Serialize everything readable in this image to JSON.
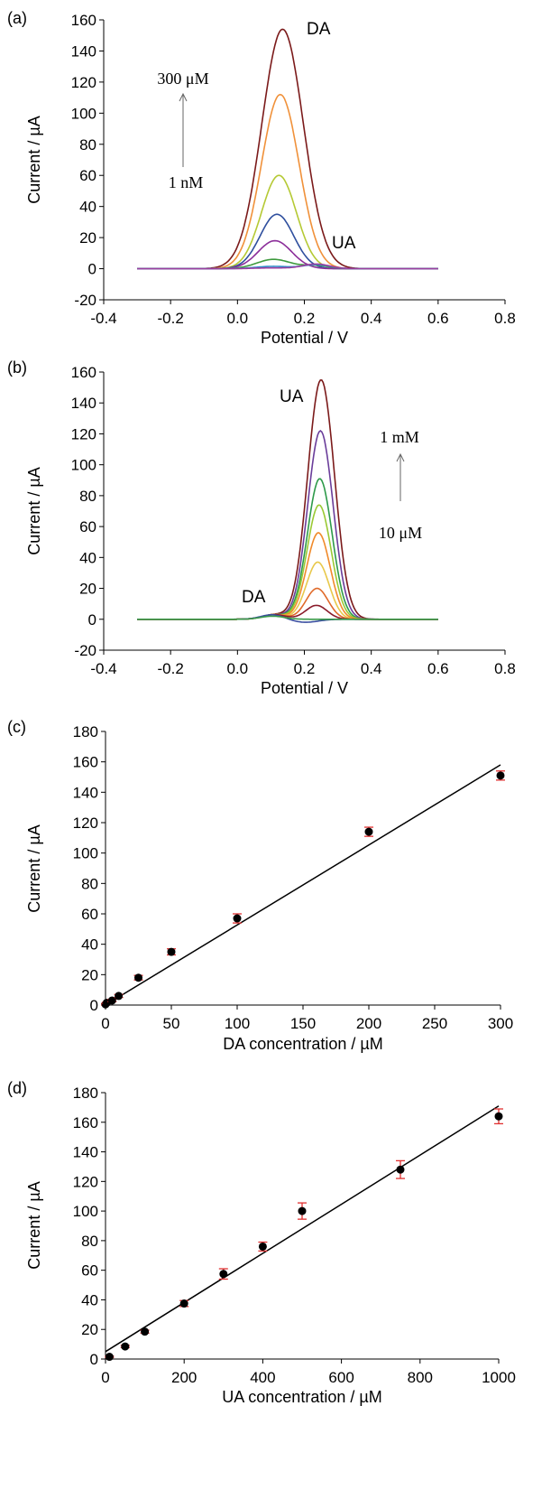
{
  "chart_data": [
    {
      "type": "line",
      "panel_label": "(a)",
      "xlabel": "Potential / V",
      "ylabel": "Current / µA",
      "xlim": [
        -0.4,
        0.8
      ],
      "ylim": [
        -20,
        160
      ],
      "xticks": [
        "-0.4",
        "-0.2",
        "0.0",
        "0.2",
        "0.4",
        "0.6",
        "0.8"
      ],
      "yticks": [
        "-20",
        "0",
        "20",
        "40",
        "60",
        "80",
        "100",
        "120",
        "140",
        "160"
      ],
      "annotations": {
        "peak1": "DA",
        "peak2": "UA",
        "arrow_top": "300 μM",
        "arrow_bottom": "1 nM"
      },
      "series": [
        {
          "color": "#7b1a1a",
          "peaks": [
            {
              "x": 0.135,
              "h": 154,
              "w": 0.062
            }
          ]
        },
        {
          "color": "#f0913a",
          "peaks": [
            {
              "x": 0.128,
              "h": 112,
              "w": 0.056
            }
          ]
        },
        {
          "color": "#b5c934",
          "peaks": [
            {
              "x": 0.124,
              "h": 60,
              "w": 0.052
            }
          ]
        },
        {
          "color": "#2f4f9e",
          "peaks": [
            {
              "x": 0.118,
              "h": 35,
              "w": 0.05
            }
          ]
        },
        {
          "color": "#8c2f9a",
          "peaks": [
            {
              "x": 0.112,
              "h": 18,
              "w": 0.05
            }
          ]
        },
        {
          "color": "#3d9a3d",
          "peaks": [
            {
              "x": 0.108,
              "h": 6,
              "w": 0.05
            },
            {
              "x": 0.235,
              "h": 2,
              "w": 0.04
            }
          ]
        },
        {
          "color": "#2e8bc9",
          "peaks": [
            {
              "x": 0.105,
              "h": 1.5,
              "w": 0.05
            },
            {
              "x": 0.235,
              "h": 2.5,
              "w": 0.04
            }
          ]
        },
        {
          "color": "#9b3fa0",
          "peaks": [
            {
              "x": 0.1,
              "h": 0.5,
              "w": 0.05
            },
            {
              "x": 0.235,
              "h": 3,
              "w": 0.04
            }
          ]
        }
      ]
    },
    {
      "type": "line",
      "panel_label": "(b)",
      "xlabel": "Potential / V",
      "ylabel": "Current / µA",
      "xlim": [
        -0.4,
        0.8
      ],
      "ylim": [
        -20,
        160
      ],
      "xticks": [
        "-0.4",
        "-0.2",
        "0.0",
        "0.2",
        "0.4",
        "0.6",
        "0.8"
      ],
      "yticks": [
        "-20",
        "0",
        "20",
        "40",
        "60",
        "80",
        "100",
        "120",
        "140",
        "160"
      ],
      "annotations": {
        "peak1": "UA",
        "peak2": "DA",
        "arrow_top": "1 mM",
        "arrow_bottom": "10 μM"
      },
      "series": [
        {
          "color": "#7b1a1a",
          "peaks": [
            {
              "x": 0.25,
              "h": 155,
              "w": 0.04
            },
            {
              "x": 0.11,
              "h": 3,
              "w": 0.035
            }
          ]
        },
        {
          "color": "#6a3d9a",
          "peaks": [
            {
              "x": 0.248,
              "h": 122,
              "w": 0.038
            },
            {
              "x": 0.11,
              "h": 3,
              "w": 0.035
            }
          ]
        },
        {
          "color": "#2e9a4a",
          "peaks": [
            {
              "x": 0.246,
              "h": 91,
              "w": 0.037
            },
            {
              "x": 0.11,
              "h": 3,
              "w": 0.035
            }
          ]
        },
        {
          "color": "#9ac934",
          "peaks": [
            {
              "x": 0.244,
              "h": 74,
              "w": 0.036
            },
            {
              "x": 0.11,
              "h": 3,
              "w": 0.035
            }
          ]
        },
        {
          "color": "#f08a2a",
          "peaks": [
            {
              "x": 0.242,
              "h": 56,
              "w": 0.035
            },
            {
              "x": 0.11,
              "h": 3,
              "w": 0.035
            }
          ]
        },
        {
          "color": "#e8c84a",
          "peaks": [
            {
              "x": 0.24,
              "h": 37,
              "w": 0.034
            },
            {
              "x": 0.11,
              "h": 3,
              "w": 0.035
            }
          ]
        },
        {
          "color": "#e06a2a",
          "peaks": [
            {
              "x": 0.238,
              "h": 20,
              "w": 0.033
            },
            {
              "x": 0.11,
              "h": 3,
              "w": 0.035
            }
          ]
        },
        {
          "color": "#8a1a2a",
          "peaks": [
            {
              "x": 0.236,
              "h": 9,
              "w": 0.032
            },
            {
              "x": 0.11,
              "h": 3,
              "w": 0.035
            }
          ]
        },
        {
          "color": "#3a4fa0",
          "peaks": [
            {
              "x": 0.105,
              "h": 3,
              "w": 0.035
            },
            {
              "x": 0.2,
              "h": -2,
              "w": 0.04
            }
          ]
        },
        {
          "color": "#3a9a4a",
          "peaks": [
            {
              "x": 0.105,
              "h": 2,
              "w": 0.035
            }
          ]
        }
      ]
    },
    {
      "type": "scatter",
      "panel_label": "(c)",
      "xlabel": "DA concentration / µM",
      "ylabel": "Current / µA",
      "xlim": [
        0,
        300
      ],
      "ylim": [
        0,
        180
      ],
      "xticks": [
        "0",
        "50",
        "100",
        "150",
        "200",
        "250",
        "300"
      ],
      "yticks": [
        "0",
        "20",
        "40",
        "60",
        "80",
        "100",
        "120",
        "140",
        "160",
        "180"
      ],
      "x": [
        0.001,
        1,
        5,
        10,
        25,
        50,
        100,
        200,
        300
      ],
      "y": [
        0.5,
        1.5,
        3,
        6,
        18,
        35,
        57,
        114,
        151
      ],
      "err": [
        0.5,
        0.5,
        0.8,
        1,
        1.5,
        2,
        3,
        3,
        3
      ],
      "fit": {
        "x": [
          0,
          300
        ],
        "y": [
          0,
          158
        ]
      }
    },
    {
      "type": "scatter",
      "panel_label": "(d)",
      "xlabel": "UA concentration / µM",
      "ylabel": "Current / µA",
      "xlim": [
        0,
        1000
      ],
      "ylim": [
        0,
        180
      ],
      "xticks": [
        "0",
        "200",
        "400",
        "600",
        "800",
        "1000"
      ],
      "yticks": [
        "0",
        "20",
        "40",
        "60",
        "80",
        "100",
        "120",
        "140",
        "160",
        "180"
      ],
      "x": [
        10,
        50,
        100,
        200,
        300,
        400,
        500,
        750,
        1000
      ],
      "y": [
        1.5,
        8.5,
        18.5,
        37.5,
        57.5,
        76,
        100,
        128,
        164
      ],
      "err": [
        0.5,
        0.8,
        1,
        2,
        3.5,
        3,
        5.5,
        6,
        5
      ],
      "fit": {
        "x": [
          0,
          1000
        ],
        "y": [
          5,
          171
        ]
      }
    }
  ]
}
